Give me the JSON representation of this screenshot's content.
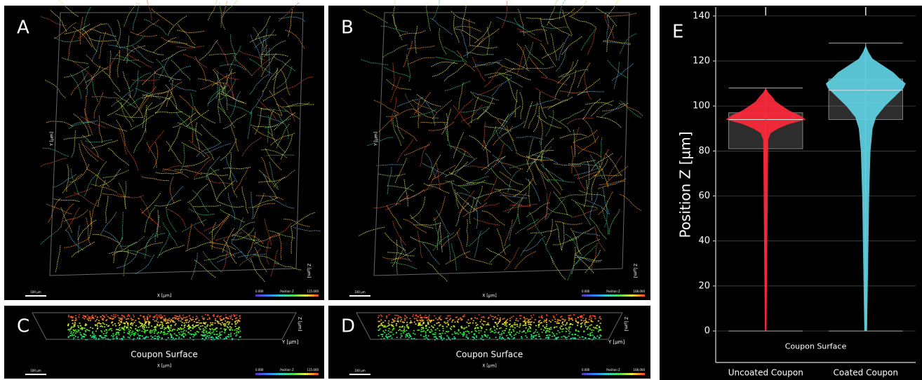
{
  "panels": [
    {
      "label": "A",
      "x_axis": "X [µm]",
      "y_axis": "Y [µm]",
      "z_axis": "Z [µm]",
      "scale_bar": "100 µm",
      "colorbar_min": "0.000",
      "colorbar_title": "Position Z",
      "colorbar_max": "115.000"
    },
    {
      "label": "B",
      "x_axis": "X [µm]",
      "y_axis": "Y [µm]",
      "z_axis": "Z [µm]",
      "scale_bar": "100 µm",
      "colorbar_min": "0.000",
      "colorbar_title": "Position Z",
      "colorbar_max": "108.000"
    },
    {
      "label": "C",
      "caption": "Coupon Surface",
      "x_axis": "X [µm]",
      "y_axis": "Y [µm]",
      "z_axis": "Z [µm]",
      "scale_bar": "100 µm",
      "colorbar_min": "0.000",
      "colorbar_title": "Position Z",
      "colorbar_max": "115.000"
    },
    {
      "label": "D",
      "caption": "Coupon Surface",
      "x_axis": "X [µm]",
      "y_axis": "Y [µm]",
      "z_axis": "Z [µm]",
      "scale_bar": "100 µm",
      "colorbar_min": "0.000",
      "colorbar_title": "Position Z",
      "colorbar_max": "108.000"
    }
  ],
  "chart_data": {
    "type": "violin",
    "panel_label": "E",
    "ylabel": "Position Z [µm]",
    "annotation": "Coupon Surface",
    "categories": [
      "Uncoated Coupon",
      "Coated Coupon"
    ],
    "ylim": [
      -14,
      144
    ],
    "yticks": [
      0,
      20,
      40,
      60,
      80,
      100,
      120,
      140
    ],
    "grid": true,
    "violins": [
      {
        "color": "#ff2a3c",
        "whisker_low": 0,
        "q1": 81,
        "median": 94,
        "q3": 97,
        "whisker_high": 108,
        "density_y": [
          0,
          40,
          85,
          88,
          90,
          92,
          94,
          96,
          98,
          100,
          102,
          104,
          106,
          108
        ],
        "density": [
          1,
          2,
          3,
          6,
          15,
          28,
          48,
          40,
          28,
          20,
          12,
          8,
          3,
          0
        ]
      },
      {
        "color": "#5fd3e4",
        "whisker_low": 0,
        "q1": 94,
        "median": 107,
        "q3": 112,
        "whisker_high": 128,
        "density_y": [
          0,
          40,
          60,
          80,
          90,
          95,
          100,
          105,
          108,
          110,
          112,
          115,
          118,
          121,
          124,
          127
        ],
        "density": [
          2,
          4,
          5,
          7,
          10,
          15,
          28,
          45,
          55,
          58,
          50,
          40,
          25,
          10,
          4,
          0
        ]
      }
    ]
  }
}
